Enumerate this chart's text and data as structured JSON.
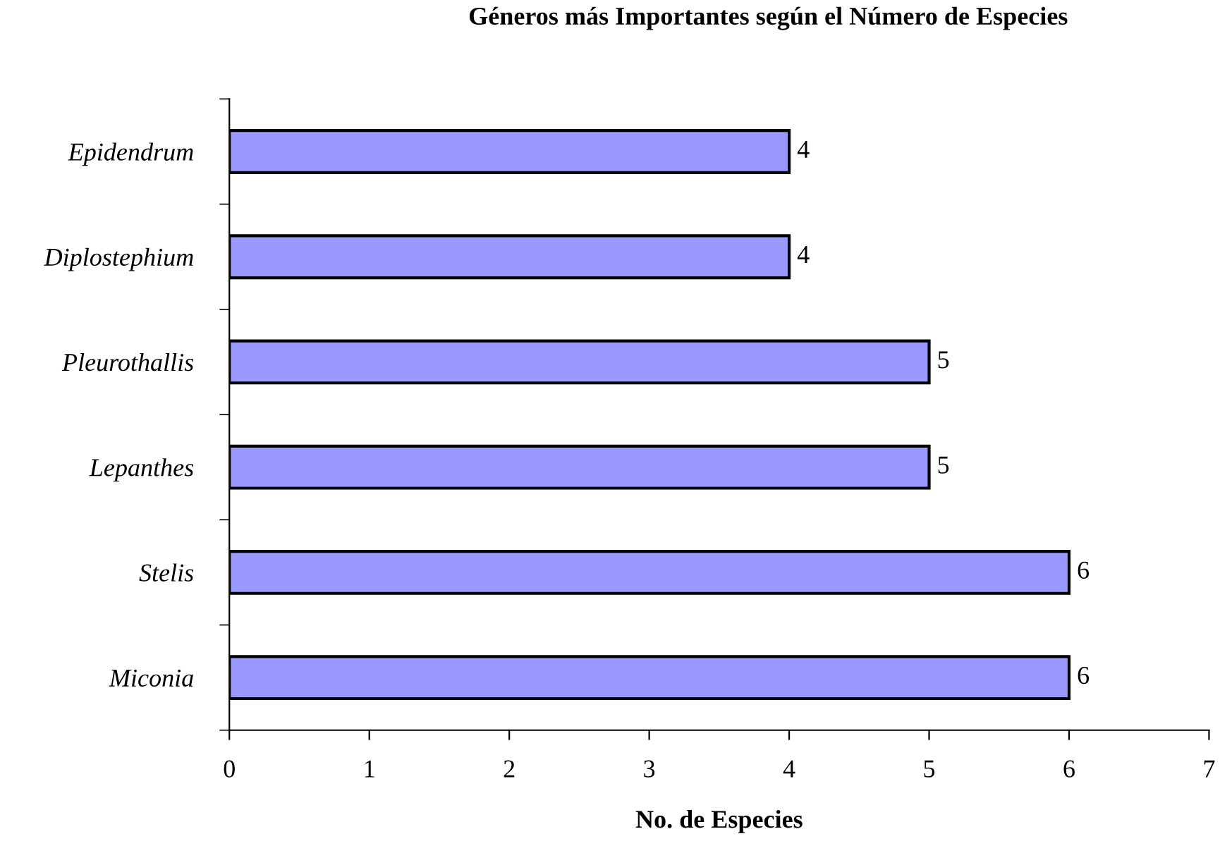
{
  "chart_data": {
    "type": "bar",
    "orientation": "horizontal",
    "title": "Géneros más Importantes según el Número de Especies",
    "xlabel": "No. de Especies",
    "categories": [
      "Epidendrum",
      "Diplostephium",
      "Pleurothallis",
      "Lepanthes",
      "Stelis",
      "Miconia"
    ],
    "values": [
      4,
      4,
      5,
      5,
      6,
      6
    ],
    "color": "#9999ff",
    "xlim": [
      0,
      7
    ],
    "xticks": [
      0,
      1,
      2,
      3,
      4,
      5,
      6,
      7
    ],
    "grid": false,
    "data_labels": true
  }
}
